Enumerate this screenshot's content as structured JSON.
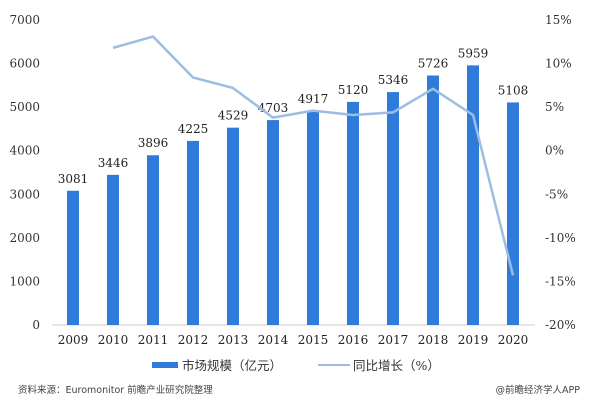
{
  "chart_data": {
    "type": "bar+line",
    "categories": [
      "2009",
      "2010",
      "2011",
      "2012",
      "2013",
      "2014",
      "2015",
      "2016",
      "2017",
      "2018",
      "2019",
      "2020"
    ],
    "series": [
      {
        "name": "市场规模（亿元）",
        "type": "bar",
        "axis": "left",
        "color": "#2f7bd9",
        "values": [
          3081,
          3446,
          3896,
          4225,
          4529,
          4703,
          4917,
          5120,
          5346,
          5726,
          5959,
          5108
        ]
      },
      {
        "name": "同比增长（%）",
        "type": "line",
        "axis": "right",
        "color": "#9dbde3",
        "values": [
          null,
          11.8,
          13.1,
          8.4,
          7.2,
          3.8,
          4.6,
          4.1,
          4.4,
          7.1,
          4.1,
          -14.3
        ]
      }
    ],
    "yleft": {
      "ylim": [
        0,
        7000
      ],
      "ticks": [
        "0",
        "1000",
        "2000",
        "3000",
        "4000",
        "5000",
        "6000",
        "7000"
      ]
    },
    "yright": {
      "ylim": [
        -20,
        15
      ],
      "ticks": [
        "-20%",
        "-15%",
        "-10%",
        "-5%",
        "0%",
        "5%",
        "10%",
        "15%"
      ]
    },
    "grid": false,
    "legend_position": "bottom"
  },
  "footer": {
    "source": "资料来源：Euromonitor 前瞻产业研究院整理",
    "credit": "@前瞻经济学人APP"
  }
}
